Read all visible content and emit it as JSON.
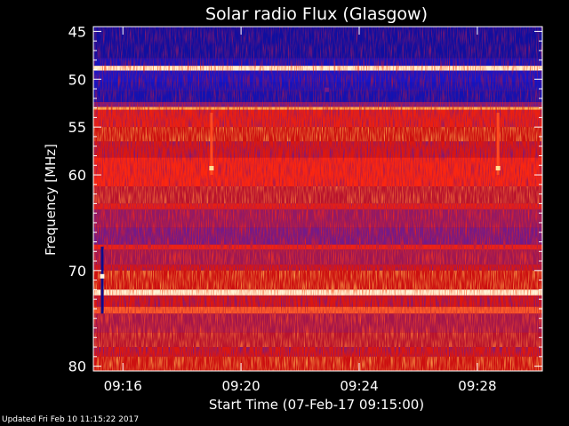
{
  "chart_data": {
    "type": "heatmap",
    "title": "Solar radio Flux (Glasgow)",
    "xlabel": "Start Time (07-Feb-17 09:15:00)",
    "ylabel": "Frequency [MHz]",
    "x_unit": "minutes after 09:15:00",
    "xlim": [
      0,
      15.2
    ],
    "x_ticks": [
      {
        "value": 1,
        "label": "09:16"
      },
      {
        "value": 5,
        "label": "09:20"
      },
      {
        "value": 9,
        "label": "09:24"
      },
      {
        "value": 13,
        "label": "09:28"
      }
    ],
    "ylim": [
      44.5,
      80.5
    ],
    "y_ticks": [
      45,
      50,
      55,
      60,
      70,
      80
    ],
    "y_minor_ticks": [
      46,
      47,
      48,
      49,
      51,
      52,
      53,
      54,
      56,
      57,
      58,
      59,
      61,
      62,
      63,
      64,
      65,
      66,
      67,
      68,
      69,
      71,
      72,
      73,
      74,
      75,
      76,
      77,
      78,
      79
    ],
    "colormap": [
      "#0a0a80",
      "#1a1ae6",
      "#8a1a70",
      "#cc1010",
      "#ff2a10",
      "#ffd060",
      "#fff8e0"
    ],
    "frequency_bands": [
      {
        "from": 44.5,
        "to": 47.8,
        "level": 0.05
      },
      {
        "from": 47.8,
        "to": 48.6,
        "level": 0.1
      },
      {
        "from": 48.6,
        "to": 49.1,
        "level": 0.98
      },
      {
        "from": 49.1,
        "to": 50.3,
        "level": 0.12
      },
      {
        "from": 50.3,
        "to": 51.2,
        "level": 0.1
      },
      {
        "from": 51.2,
        "to": 52.4,
        "level": 0.08
      },
      {
        "from": 52.4,
        "to": 52.9,
        "level": 0.3
      },
      {
        "from": 52.9,
        "to": 53.2,
        "level": 0.8
      },
      {
        "from": 53.2,
        "to": 55.0,
        "level": 0.6
      },
      {
        "from": 55.0,
        "to": 56.5,
        "level": 0.5
      },
      {
        "from": 56.5,
        "to": 58.2,
        "level": 0.55
      },
      {
        "from": 58.2,
        "to": 61.2,
        "level": 0.65
      },
      {
        "from": 61.2,
        "to": 63.0,
        "level": 0.45
      },
      {
        "from": 63.0,
        "to": 63.6,
        "level": 0.6
      },
      {
        "from": 63.6,
        "to": 65.5,
        "level": 0.35
      },
      {
        "from": 65.5,
        "to": 67.3,
        "level": 0.3
      },
      {
        "from": 67.3,
        "to": 67.8,
        "level": 0.62
      },
      {
        "from": 67.8,
        "to": 69.4,
        "level": 0.38
      },
      {
        "from": 69.4,
        "to": 70.0,
        "level": 0.55
      },
      {
        "from": 70.0,
        "to": 72.0,
        "level": 0.5
      },
      {
        "from": 72.0,
        "to": 72.6,
        "level": 0.99
      },
      {
        "from": 72.6,
        "to": 73.8,
        "level": 0.55
      },
      {
        "from": 73.8,
        "to": 74.5,
        "level": 0.72
      },
      {
        "from": 74.5,
        "to": 76.5,
        "level": 0.4
      },
      {
        "from": 76.5,
        "to": 78.0,
        "level": 0.45
      },
      {
        "from": 78.0,
        "to": 79.0,
        "level": 0.55
      },
      {
        "from": 79.0,
        "to": 80.5,
        "level": 0.5
      }
    ],
    "features": [
      {
        "kind": "vertical_line",
        "x": 0.3,
        "from": 67.5,
        "to": 74.5,
        "level": 0.02
      },
      {
        "kind": "spot",
        "x": 0.3,
        "y": 70.6,
        "level": 1.0
      },
      {
        "kind": "vertical_line",
        "x": 4.0,
        "from": 53.5,
        "to": 60.0,
        "level": 0.7
      },
      {
        "kind": "spot",
        "x": 4.0,
        "y": 59.3,
        "level": 0.9
      },
      {
        "kind": "spot",
        "x": 7.9,
        "y": 51.1,
        "level": 0.3
      },
      {
        "kind": "vertical_line",
        "x": 13.7,
        "from": 53.5,
        "to": 60.0,
        "level": 0.7
      },
      {
        "kind": "spot",
        "x": 13.7,
        "y": 59.3,
        "level": 0.9
      }
    ]
  },
  "footer": {
    "updated": "Updated Fri Feb 10 11:15:22 2017"
  }
}
